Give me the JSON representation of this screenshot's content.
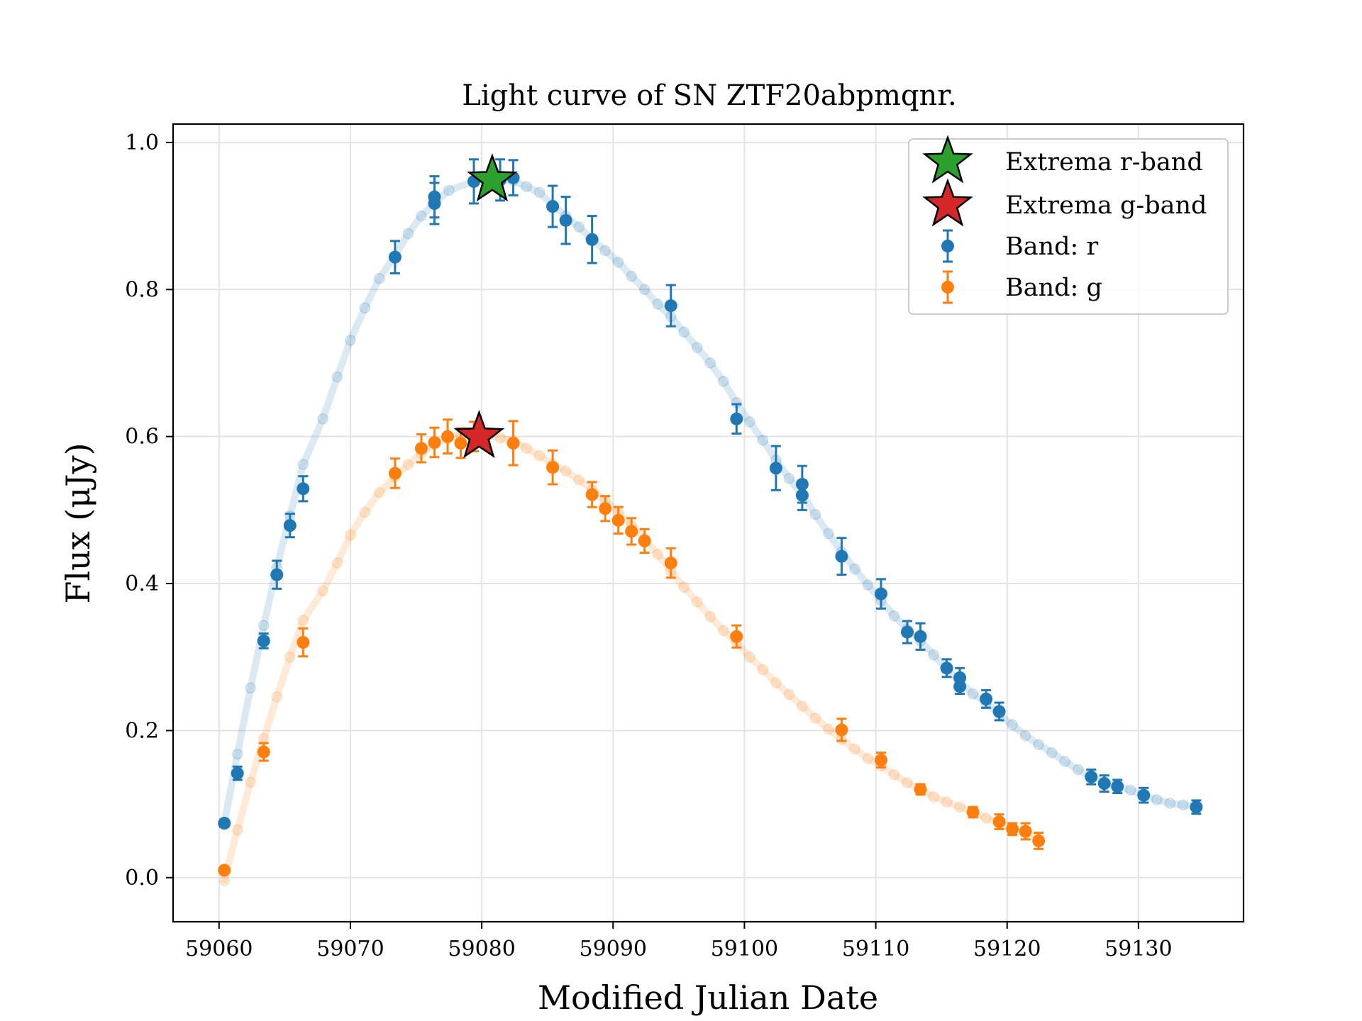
{
  "chart_data": {
    "type": "scatter",
    "title": "Light curve of SN ZTF20abpmqnr.",
    "xlabel": "Modified Julian Date",
    "ylabel": "Flux (μJy)",
    "xlim": [
      59056.5,
      59138
    ],
    "ylim": [
      -0.06,
      1.025
    ],
    "xticks": [
      59060,
      59070,
      59080,
      59090,
      59100,
      59110,
      59120,
      59130
    ],
    "xtick_labels": [
      "59060",
      "59070",
      "59080",
      "59090",
      "59100",
      "59110",
      "59120",
      "59130"
    ],
    "yticks": [
      0.0,
      0.2,
      0.4,
      0.6,
      0.8,
      1.0
    ],
    "ytick_labels": [
      "0.0",
      "0.2",
      "0.4",
      "0.6",
      "0.8",
      "1.0"
    ],
    "grid": true,
    "legend_position": "top-right",
    "legend": [
      {
        "label": "Extrema r-band",
        "marker": "star",
        "color": "#2ca02c"
      },
      {
        "label": "Extrema g-band",
        "marker": "star",
        "color": "#d62728"
      },
      {
        "label": "Band: r",
        "marker": "errorbar",
        "color": "#1f77b4"
      },
      {
        "label": "Band: g",
        "marker": "errorbar",
        "color": "#ff7f0e"
      }
    ],
    "series": [
      {
        "name": "Band: r",
        "color": "#1f77b4",
        "points": [
          {
            "x": 59060.4,
            "y": 0.074,
            "err": 0.005
          },
          {
            "x": 59061.4,
            "y": 0.142,
            "err": 0.009
          },
          {
            "x": 59063.4,
            "y": 0.322,
            "err": 0.01
          },
          {
            "x": 59064.4,
            "y": 0.412,
            "err": 0.019
          },
          {
            "x": 59065.4,
            "y": 0.479,
            "err": 0.016
          },
          {
            "x": 59066.4,
            "y": 0.529,
            "err": 0.017
          },
          {
            "x": 59073.4,
            "y": 0.844,
            "err": 0.022
          },
          {
            "x": 59076.4,
            "y": 0.917,
            "err": 0.028
          },
          {
            "x": 59076.4,
            "y": 0.926,
            "err": 0.028
          },
          {
            "x": 59079.4,
            "y": 0.947,
            "err": 0.03
          },
          {
            "x": 59081.4,
            "y": 0.949,
            "err": 0.028
          },
          {
            "x": 59082.4,
            "y": 0.952,
            "err": 0.024
          },
          {
            "x": 59085.4,
            "y": 0.913,
            "err": 0.028
          },
          {
            "x": 59086.4,
            "y": 0.894,
            "err": 0.032
          },
          {
            "x": 59088.4,
            "y": 0.868,
            "err": 0.032
          },
          {
            "x": 59094.4,
            "y": 0.778,
            "err": 0.028
          },
          {
            "x": 59099.4,
            "y": 0.624,
            "err": 0.02
          },
          {
            "x": 59102.4,
            "y": 0.557,
            "err": 0.03
          },
          {
            "x": 59104.4,
            "y": 0.535,
            "err": 0.025
          },
          {
            "x": 59104.4,
            "y": 0.52,
            "err": 0.02
          },
          {
            "x": 59107.4,
            "y": 0.437,
            "err": 0.025
          },
          {
            "x": 59110.4,
            "y": 0.386,
            "err": 0.02
          },
          {
            "x": 59112.4,
            "y": 0.334,
            "err": 0.015
          },
          {
            "x": 59113.4,
            "y": 0.328,
            "err": 0.018
          },
          {
            "x": 59115.4,
            "y": 0.285,
            "err": 0.012
          },
          {
            "x": 59116.4,
            "y": 0.272,
            "err": 0.013
          },
          {
            "x": 59116.4,
            "y": 0.26,
            "err": 0.01
          },
          {
            "x": 59118.4,
            "y": 0.243,
            "err": 0.012
          },
          {
            "x": 59119.4,
            "y": 0.226,
            "err": 0.012
          },
          {
            "x": 59126.4,
            "y": 0.137,
            "err": 0.01
          },
          {
            "x": 59127.4,
            "y": 0.128,
            "err": 0.011
          },
          {
            "x": 59128.4,
            "y": 0.124,
            "err": 0.009
          },
          {
            "x": 59130.4,
            "y": 0.112,
            "err": 0.01
          },
          {
            "x": 59134.4,
            "y": 0.096,
            "err": 0.009
          }
        ],
        "fit": [
          [
            59060.4,
            0.074
          ],
          [
            59061.4,
            0.168
          ],
          [
            59062.4,
            0.258
          ],
          [
            59063.4,
            0.343
          ],
          [
            59064.4,
            0.422
          ],
          [
            59065.4,
            0.492
          ],
          [
            59066.4,
            0.562
          ],
          [
            59067.9,
            0.624
          ],
          [
            59069.0,
            0.681
          ],
          [
            59070.0,
            0.731
          ],
          [
            59071.1,
            0.775
          ],
          [
            59072.2,
            0.815
          ],
          [
            59073.4,
            0.846
          ],
          [
            59074.4,
            0.876
          ],
          [
            59075.4,
            0.9
          ],
          [
            59076.4,
            0.917
          ],
          [
            59077.5,
            0.935
          ],
          [
            59079.4,
            0.947
          ],
          [
            59080.4,
            0.952
          ],
          [
            59082.4,
            0.948
          ],
          [
            59083.4,
            0.94
          ],
          [
            59084.4,
            0.932
          ],
          [
            59085.4,
            0.915
          ],
          [
            59086.4,
            0.9
          ],
          [
            59087.4,
            0.885
          ],
          [
            59088.4,
            0.868
          ],
          [
            59089.4,
            0.853
          ],
          [
            59090.4,
            0.837
          ],
          [
            59091.4,
            0.818
          ],
          [
            59092.4,
            0.8
          ],
          [
            59093.4,
            0.78
          ],
          [
            59094.4,
            0.763
          ],
          [
            59095.4,
            0.742
          ],
          [
            59096.4,
            0.721
          ],
          [
            59097.4,
            0.7
          ],
          [
            59098.4,
            0.675
          ],
          [
            59099.4,
            0.646
          ],
          [
            59100.4,
            0.62
          ],
          [
            59101.4,
            0.595
          ],
          [
            59102.4,
            0.568
          ],
          [
            59103.4,
            0.543
          ],
          [
            59104.4,
            0.521
          ],
          [
            59105.4,
            0.494
          ],
          [
            59106.4,
            0.468
          ],
          [
            59107.4,
            0.443
          ],
          [
            59108.4,
            0.42
          ],
          [
            59109.4,
            0.398
          ],
          [
            59110.4,
            0.377
          ],
          [
            59111.4,
            0.356
          ],
          [
            59112.4,
            0.338
          ],
          [
            59113.4,
            0.322
          ],
          [
            59114.4,
            0.303
          ],
          [
            59115.4,
            0.284
          ],
          [
            59116.4,
            0.266
          ],
          [
            59117.4,
            0.25
          ],
          [
            59118.4,
            0.238
          ],
          [
            59119.4,
            0.222
          ],
          [
            59120.4,
            0.208
          ],
          [
            59121.4,
            0.193
          ],
          [
            59122.4,
            0.181
          ],
          [
            59123.4,
            0.17
          ],
          [
            59124.4,
            0.158
          ],
          [
            59125.4,
            0.147
          ],
          [
            59126.4,
            0.137
          ],
          [
            59127.4,
            0.13
          ],
          [
            59128.4,
            0.124
          ],
          [
            59129.4,
            0.119
          ],
          [
            59130.4,
            0.112
          ],
          [
            59131.4,
            0.106
          ],
          [
            59132.4,
            0.101
          ],
          [
            59133.4,
            0.099
          ],
          [
            59134.4,
            0.096
          ]
        ]
      },
      {
        "name": "Band: g",
        "color": "#ff7f0e",
        "points": [
          {
            "x": 59060.4,
            "y": 0.01,
            "err": 0.004
          },
          {
            "x": 59063.4,
            "y": 0.171,
            "err": 0.012
          },
          {
            "x": 59066.4,
            "y": 0.32,
            "err": 0.019
          },
          {
            "x": 59073.4,
            "y": 0.55,
            "err": 0.02
          },
          {
            "x": 59075.4,
            "y": 0.584,
            "err": 0.019
          },
          {
            "x": 59076.4,
            "y": 0.592,
            "err": 0.02
          },
          {
            "x": 59077.4,
            "y": 0.6,
            "err": 0.023
          },
          {
            "x": 59078.4,
            "y": 0.591,
            "err": 0.02
          },
          {
            "x": 59079.4,
            "y": 0.6,
            "err": 0.02
          },
          {
            "x": 59082.4,
            "y": 0.591,
            "err": 0.03
          },
          {
            "x": 59085.4,
            "y": 0.558,
            "err": 0.023
          },
          {
            "x": 59088.4,
            "y": 0.521,
            "err": 0.017
          },
          {
            "x": 59089.4,
            "y": 0.502,
            "err": 0.017
          },
          {
            "x": 59090.4,
            "y": 0.486,
            "err": 0.018
          },
          {
            "x": 59091.4,
            "y": 0.471,
            "err": 0.018
          },
          {
            "x": 59092.4,
            "y": 0.458,
            "err": 0.016
          },
          {
            "x": 59094.4,
            "y": 0.428,
            "err": 0.02
          },
          {
            "x": 59099.4,
            "y": 0.328,
            "err": 0.015
          },
          {
            "x": 59107.4,
            "y": 0.201,
            "err": 0.015
          },
          {
            "x": 59110.4,
            "y": 0.16,
            "err": 0.01
          },
          {
            "x": 59113.4,
            "y": 0.12,
            "err": 0.007
          },
          {
            "x": 59117.4,
            "y": 0.089,
            "err": 0.007
          },
          {
            "x": 59119.4,
            "y": 0.076,
            "err": 0.01
          },
          {
            "x": 59120.4,
            "y": 0.066,
            "err": 0.008
          },
          {
            "x": 59121.4,
            "y": 0.063,
            "err": 0.011
          },
          {
            "x": 59122.4,
            "y": 0.05,
            "err": 0.011
          }
        ],
        "fit": [
          [
            59060.4,
            -0.004
          ],
          [
            59061.4,
            0.065
          ],
          [
            59062.4,
            0.13
          ],
          [
            59063.4,
            0.189
          ],
          [
            59064.4,
            0.246
          ],
          [
            59065.4,
            0.3
          ],
          [
            59066.4,
            0.35
          ],
          [
            59067.9,
            0.39
          ],
          [
            59069.0,
            0.428
          ],
          [
            59070.0,
            0.466
          ],
          [
            59071.1,
            0.497
          ],
          [
            59072.2,
            0.524
          ],
          [
            59073.4,
            0.545
          ],
          [
            59074.4,
            0.562
          ],
          [
            59075.4,
            0.577
          ],
          [
            59076.4,
            0.589
          ],
          [
            59077.4,
            0.597
          ],
          [
            59078.4,
            0.602
          ],
          [
            59079.4,
            0.604
          ],
          [
            59080.4,
            0.603
          ],
          [
            59081.4,
            0.598
          ],
          [
            59082.4,
            0.594
          ],
          [
            59083.4,
            0.584
          ],
          [
            59084.4,
            0.574
          ],
          [
            59085.4,
            0.562
          ],
          [
            59086.4,
            0.553
          ],
          [
            59087.4,
            0.541
          ],
          [
            59088.4,
            0.528
          ],
          [
            59089.4,
            0.513
          ],
          [
            59090.4,
            0.497
          ],
          [
            59091.4,
            0.48
          ],
          [
            59092.4,
            0.461
          ],
          [
            59093.4,
            0.44
          ],
          [
            59094.4,
            0.417
          ],
          [
            59095.4,
            0.395
          ],
          [
            59096.4,
            0.375
          ],
          [
            59097.4,
            0.355
          ],
          [
            59098.4,
            0.336
          ],
          [
            59099.4,
            0.32
          ],
          [
            59100.4,
            0.3
          ],
          [
            59101.4,
            0.283
          ],
          [
            59102.4,
            0.265
          ],
          [
            59103.4,
            0.249
          ],
          [
            59104.4,
            0.233
          ],
          [
            59105.4,
            0.217
          ],
          [
            59106.4,
            0.202
          ],
          [
            59107.4,
            0.188
          ],
          [
            59108.4,
            0.175
          ],
          [
            59109.4,
            0.162
          ],
          [
            59110.4,
            0.152
          ],
          [
            59111.4,
            0.14
          ],
          [
            59112.4,
            0.129
          ],
          [
            59113.4,
            0.12
          ],
          [
            59114.4,
            0.11
          ],
          [
            59115.4,
            0.103
          ],
          [
            59116.4,
            0.096
          ],
          [
            59117.4,
            0.089
          ],
          [
            59118.4,
            0.081
          ],
          [
            59119.4,
            0.074
          ],
          [
            59120.4,
            0.067
          ],
          [
            59121.4,
            0.06
          ],
          [
            59122.4,
            0.053
          ]
        ]
      }
    ],
    "extrema": [
      {
        "name": "Extrema r-band",
        "x": 59080.8,
        "y": 0.949,
        "color": "#2ca02c"
      },
      {
        "name": "Extrema g-band",
        "x": 59079.8,
        "y": 0.6,
        "color": "#d62728"
      }
    ]
  }
}
